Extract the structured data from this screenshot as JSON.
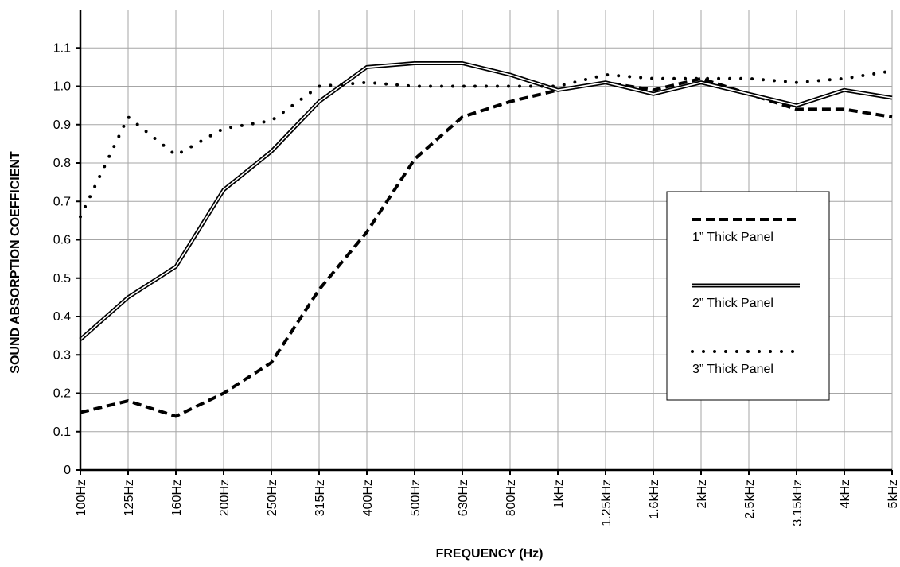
{
  "chart_data": {
    "type": "line",
    "title": "",
    "xlabel": "FREQUENCY (Hz)",
    "ylabel": "SOUND ABSORPTION COEFFICIENT",
    "categories": [
      "100Hz",
      "125Hz",
      "160Hz",
      "200Hz",
      "250Hz",
      "315Hz",
      "400Hz",
      "500Hz",
      "630Hz",
      "800Hz",
      "1kHz",
      "1.25kHz",
      "1.6kHz",
      "2kHz",
      "2.5kHz",
      "3.15kHz",
      "4kHz",
      "5kHz"
    ],
    "yticks": [
      "0",
      "0.1",
      "0.2",
      "0.3",
      "0.4",
      "0.5",
      "0.6",
      "0.7",
      "0.8",
      "0.9",
      "1.0",
      "1.1"
    ],
    "ylim": [
      0,
      1.2
    ],
    "grid": true,
    "legend_position": "right",
    "series": [
      {
        "name": "1” Thick Panel",
        "style": "dashed",
        "color": "#000000",
        "values": [
          0.15,
          0.18,
          0.14,
          0.2,
          0.28,
          0.47,
          0.62,
          0.81,
          0.92,
          0.96,
          0.99,
          1.01,
          0.99,
          1.02,
          0.98,
          0.94,
          0.94,
          0.92
        ]
      },
      {
        "name": "2” Thick Panel",
        "style": "double",
        "color": "#000000",
        "values": [
          0.34,
          0.45,
          0.53,
          0.73,
          0.83,
          0.96,
          1.05,
          1.06,
          1.06,
          1.03,
          0.99,
          1.01,
          0.98,
          1.01,
          0.98,
          0.95,
          0.99,
          0.97
        ]
      },
      {
        "name": "3” Thick Panel",
        "style": "dotted",
        "color": "#000000",
        "values": [
          0.66,
          0.92,
          0.82,
          0.89,
          0.91,
          1.0,
          1.01,
          1.0,
          1.0,
          1.0,
          1.0,
          1.03,
          1.02,
          1.02,
          1.02,
          1.01,
          1.02,
          1.04
        ]
      }
    ]
  }
}
